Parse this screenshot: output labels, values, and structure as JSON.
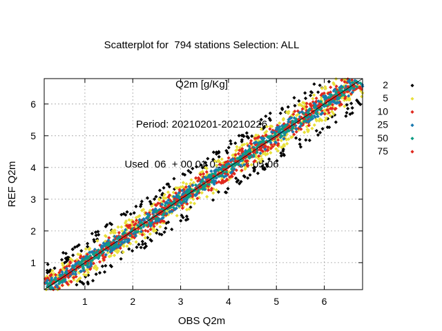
{
  "chart_data": {
    "type": "scatter",
    "title": [
      "Scatterplot for  794 stations Selection: ALL",
      "Q2m [g/Kg]",
      "Period: 20210201-20210226",
      "Used  06  + 00 01 02 03 04 05 06"
    ],
    "xlabel": "OBS Q2m",
    "ylabel": "REF Q2m",
    "xlim": [
      0.15,
      6.8
    ],
    "ylim": [
      0.15,
      6.8
    ],
    "xticks": [
      1,
      2,
      3,
      4,
      5,
      6
    ],
    "yticks": [
      1,
      2,
      3,
      4,
      5,
      6
    ],
    "grid": true,
    "legend_position": "right",
    "reference_line": "y = x",
    "series": [
      {
        "name": "2",
        "color": "#000000",
        "half_width": [
          0.75,
          0.9
        ]
      },
      {
        "name": "5",
        "color": "#e8e03a",
        "half_width": [
          0.45,
          0.55
        ]
      },
      {
        "name": "10",
        "color": "#e0281e",
        "half_width": [
          0.33,
          0.4
        ]
      },
      {
        "name": "25",
        "color": "#1a7ab0",
        "half_width": [
          0.22,
          0.27
        ]
      },
      {
        "name": "50",
        "color": "#0d9c84",
        "half_width": [
          0.12,
          0.15
        ]
      },
      {
        "name": "75",
        "color": "#e0281e",
        "half_width": [
          0.05,
          0.06
        ]
      }
    ],
    "point_range": [
      0.2,
      6.7
    ]
  }
}
